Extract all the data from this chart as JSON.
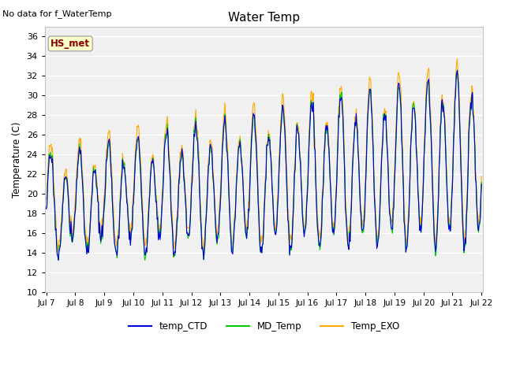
{
  "title": "Water Temp",
  "ylabel": "Temperature (C)",
  "ylim": [
    10,
    37
  ],
  "yticks": [
    10,
    12,
    14,
    16,
    18,
    20,
    22,
    24,
    26,
    28,
    30,
    32,
    34,
    36
  ],
  "no_data_text": "No data for f_WaterTemp",
  "hs_met_label": "HS_met",
  "legend_entries": [
    "temp_CTD",
    "MD_Temp",
    "Temp_EXO"
  ],
  "legend_colors": [
    "#0000dd",
    "#00cc00",
    "#ffaa00"
  ],
  "line_colors": [
    "#0000dd",
    "#00cc00",
    "#ffaa00"
  ],
  "background_color": "#ffffff",
  "plot_bg_color": "#f0f0f0",
  "n_points": 720,
  "x_start": 7,
  "x_end": 22,
  "xtick_labels": [
    "Jul 7",
    "Jul 8",
    "Jul 9",
    "Jul 10",
    "Jul 11",
    "Jul 12",
    "Jul 13",
    "Jul 14",
    "Jul 15",
    "Jul 16",
    "Jul 17",
    "Jul 18",
    "Jul 19",
    "Jul 20",
    "Jul 21",
    "Jul 22"
  ],
  "xtick_positions": [
    7,
    8,
    9,
    10,
    11,
    12,
    13,
    14,
    15,
    16,
    17,
    18,
    19,
    20,
    21,
    22
  ]
}
